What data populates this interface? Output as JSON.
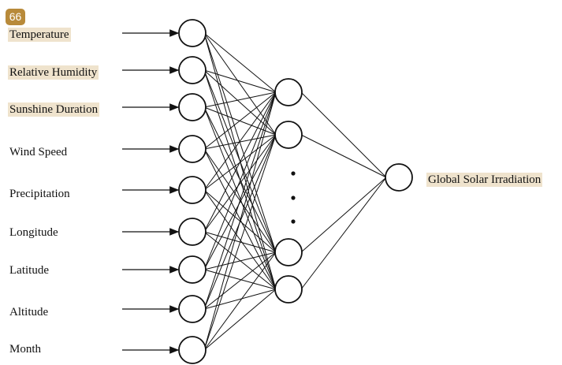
{
  "badge": "66",
  "inputs": [
    {
      "label": "Temperature",
      "highlight": true
    },
    {
      "label": "Relative Humidity",
      "highlight": true
    },
    {
      "label": "Sunshine Duration",
      "highlight": true
    },
    {
      "label": "Wind Speed",
      "highlight": false
    },
    {
      "label": "Precipitation",
      "highlight": false
    },
    {
      "label": "Longitude",
      "highlight": false
    },
    {
      "label": "Latitude",
      "highlight": false
    },
    {
      "label": "Altitude",
      "highlight": false
    },
    {
      "label": "Month",
      "highlight": false
    }
  ],
  "hidden_layer": {
    "visible_nodes": 4,
    "ellipsis_dots": 3
  },
  "output": {
    "label": "Global Solar Irradiation",
    "highlight": true
  },
  "colors": {
    "badge": "#b88a3a",
    "highlight": "#efe3cd",
    "stroke": "#111111"
  }
}
